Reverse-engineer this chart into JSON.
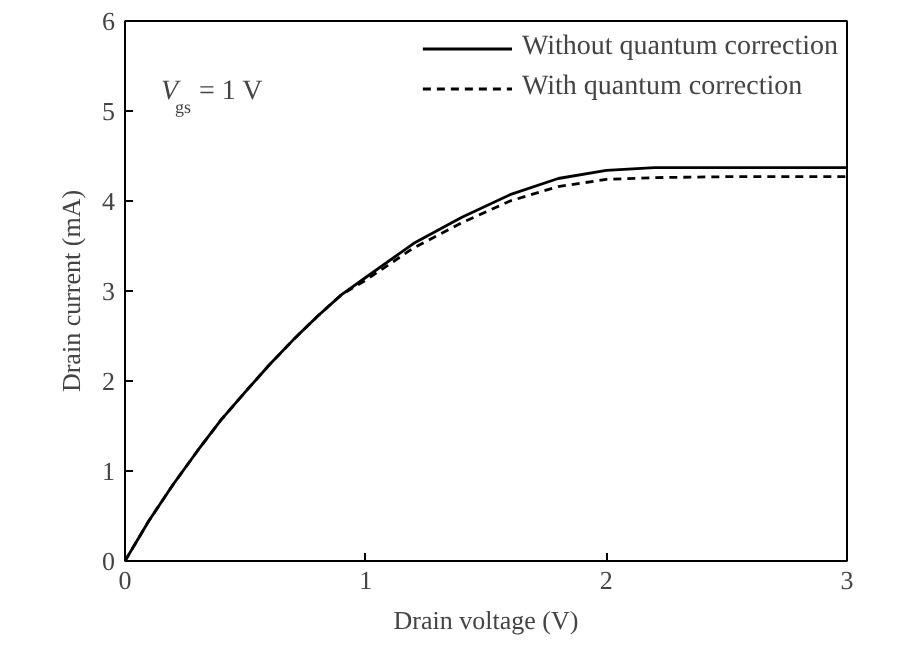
{
  "chart_data": {
    "type": "line",
    "xlabel": "Drain voltage (V)",
    "ylabel": "Drain current (mA)",
    "x": [
      0,
      0.1,
      0.2,
      0.3,
      0.4,
      0.5,
      0.6,
      0.7,
      0.8,
      0.9,
      1.0,
      1.2,
      1.4,
      1.6,
      1.8,
      2.0,
      2.2,
      2.5,
      3.0
    ],
    "series": [
      {
        "name": "Without quantum correction",
        "color": "#000000",
        "line_style": "solid",
        "values": [
          0,
          0.45,
          0.85,
          1.22,
          1.57,
          1.88,
          2.18,
          2.46,
          2.72,
          2.96,
          3.15,
          3.53,
          3.82,
          4.07,
          4.25,
          4.34,
          4.37,
          4.37,
          4.37
        ]
      },
      {
        "name": "With quantum correction",
        "color": "#000000",
        "line_style": "dashed",
        "values": [
          0,
          0.45,
          0.85,
          1.22,
          1.57,
          1.88,
          2.18,
          2.46,
          2.72,
          2.96,
          3.12,
          3.48,
          3.76,
          4.0,
          4.16,
          4.24,
          4.26,
          4.27,
          4.27
        ]
      }
    ],
    "xlim": [
      0,
      3
    ],
    "ylim": [
      0,
      6
    ],
    "xticks": [
      0,
      1,
      2,
      3
    ],
    "yticks": [
      0,
      1,
      2,
      3,
      4,
      5,
      6
    ],
    "grid": false,
    "legend": "top right",
    "annotations": [
      "V$_{gs}$ = 1 V"
    ]
  }
}
